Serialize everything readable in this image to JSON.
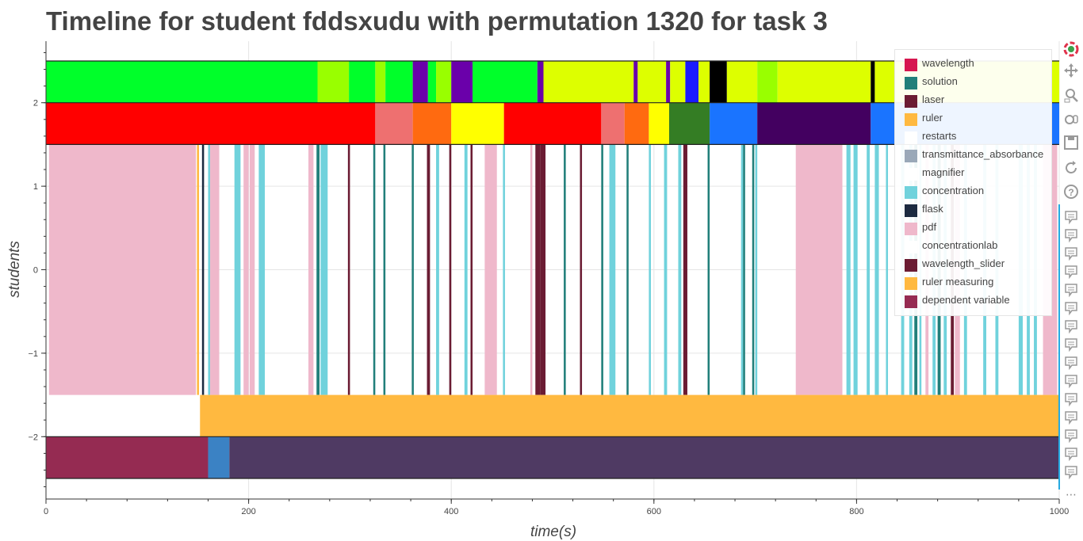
{
  "title": "Timeline for student fddsxudu with permutation 1320 for task 3",
  "chart_data": {
    "type": "timeline",
    "title": "Timeline for student fddsxudu with permutation 1320 for task 3",
    "xlabel": "time(s)",
    "ylabel": "students",
    "xlim": [
      0,
      1000
    ],
    "ylim": [
      -2.7,
      2.7
    ],
    "x_ticks": [
      0,
      200,
      400,
      600,
      800,
      1000
    ],
    "y_ticks": [
      2,
      1,
      0,
      -1,
      -2
    ],
    "y_tick_labels": [
      "2",
      "1",
      "0",
      "−1",
      "−2"
    ],
    "grid": true,
    "legend_position": "top-right",
    "legend": [
      {
        "label": "wavelength",
        "color": "#d6164f"
      },
      {
        "label": "solution",
        "color": "#217f7a"
      },
      {
        "label": "laser",
        "color": "#6b1c33"
      },
      {
        "label": "ruler",
        "color": "#ffb940"
      },
      {
        "label": "restarts",
        "color": "#ffffff"
      },
      {
        "label": "transmittance_absorbance",
        "color": "#9aa8b8"
      },
      {
        "label": "magnifier",
        "color": "#ffffff"
      },
      {
        "label": "concentration",
        "color": "#70d2dc"
      },
      {
        "label": "flask",
        "color": "#1b2a40"
      },
      {
        "label": "pdf",
        "color": "#efb8cb"
      },
      {
        "label": "concentrationlab",
        "color": "#ffffff"
      },
      {
        "label": "wavelength_slider",
        "color": "#6b1c33"
      },
      {
        "label": "ruler measuring",
        "color": "#ffb940"
      },
      {
        "label": "dependent variable",
        "color": "#952b52"
      }
    ],
    "rows": [
      {
        "y_from": 2.0,
        "y_to": 2.5,
        "segments": [
          {
            "x0": 0,
            "x1": 268,
            "color": "#00ff2a"
          },
          {
            "x0": 268,
            "x1": 299,
            "color": "#99ff00"
          },
          {
            "x0": 299,
            "x1": 325,
            "color": "#00ff2a"
          },
          {
            "x0": 325,
            "x1": 335,
            "color": "#99ff00"
          },
          {
            "x0": 335,
            "x1": 362,
            "color": "#00ff2a"
          },
          {
            "x0": 362,
            "x1": 377,
            "color": "#6a00aa"
          },
          {
            "x0": 377,
            "x1": 385,
            "color": "#00ff2a"
          },
          {
            "x0": 385,
            "x1": 400,
            "color": "#99ff00"
          },
          {
            "x0": 400,
            "x1": 421,
            "color": "#6a00aa"
          },
          {
            "x0": 421,
            "x1": 485,
            "color": "#00ff2a"
          },
          {
            "x0": 485,
            "x1": 491,
            "color": "#6a00aa"
          },
          {
            "x0": 491,
            "x1": 580,
            "color": "#ddff00"
          },
          {
            "x0": 580,
            "x1": 584,
            "color": "#6a00aa"
          },
          {
            "x0": 584,
            "x1": 612,
            "color": "#ddff00"
          },
          {
            "x0": 612,
            "x1": 616,
            "color": "#6a00aa"
          },
          {
            "x0": 616,
            "x1": 631,
            "color": "#ddff00"
          },
          {
            "x0": 631,
            "x1": 644,
            "color": "#1a1aff"
          },
          {
            "x0": 644,
            "x1": 655,
            "color": "#ddff00"
          },
          {
            "x0": 655,
            "x1": 672,
            "color": "#000000"
          },
          {
            "x0": 672,
            "x1": 702,
            "color": "#ddff00"
          },
          {
            "x0": 702,
            "x1": 722,
            "color": "#99ff00"
          },
          {
            "x0": 722,
            "x1": 814,
            "color": "#ddff00"
          },
          {
            "x0": 814,
            "x1": 818,
            "color": "#000000"
          },
          {
            "x0": 818,
            "x1": 1000,
            "color": "#ddff00"
          }
        ]
      },
      {
        "y_from": 1.5,
        "y_to": 2.0,
        "segments": [
          {
            "x0": 0,
            "x1": 325,
            "color": "#ff0000"
          },
          {
            "x0": 325,
            "x1": 362,
            "color": "#ee7070"
          },
          {
            "x0": 362,
            "x1": 400,
            "color": "#ff6a10"
          },
          {
            "x0": 400,
            "x1": 452,
            "color": "#ffff00"
          },
          {
            "x0": 452,
            "x1": 548,
            "color": "#ff0000"
          },
          {
            "x0": 548,
            "x1": 571,
            "color": "#ee7070"
          },
          {
            "x0": 571,
            "x1": 595,
            "color": "#ff6a10"
          },
          {
            "x0": 595,
            "x1": 615,
            "color": "#ffff00"
          },
          {
            "x0": 615,
            "x1": 655,
            "color": "#347d24"
          },
          {
            "x0": 655,
            "x1": 702,
            "color": "#1a74ff"
          },
          {
            "x0": 702,
            "x1": 814,
            "color": "#430060"
          },
          {
            "x0": 814,
            "x1": 1000,
            "color": "#1a74ff"
          }
        ]
      },
      {
        "y_from": -1.5,
        "y_to": 1.5,
        "segments": [
          {
            "x0": 3,
            "x1": 148,
            "color": "#efb8cb"
          },
          {
            "x0": 149,
            "x1": 151,
            "color": "#ffb940"
          },
          {
            "x0": 154,
            "x1": 156,
            "color": "#1b2a40"
          },
          {
            "x0": 160,
            "x1": 162,
            "color": "#70d2dc"
          },
          {
            "x0": 162,
            "x1": 171,
            "color": "#efb8cb"
          },
          {
            "x0": 186,
            "x1": 192,
            "color": "#70d2dc"
          },
          {
            "x0": 195,
            "x1": 200,
            "color": "#efb8cb"
          },
          {
            "x0": 201,
            "x1": 206,
            "color": "#efb8cb"
          },
          {
            "x0": 210,
            "x1": 216,
            "color": "#70d2dc"
          },
          {
            "x0": 259,
            "x1": 264,
            "color": "#efb8cb"
          },
          {
            "x0": 267,
            "x1": 270,
            "color": "#217f7a"
          },
          {
            "x0": 271,
            "x1": 278,
            "color": "#70d2dc"
          },
          {
            "x0": 298,
            "x1": 300,
            "color": "#6b1c33"
          },
          {
            "x0": 323,
            "x1": 325,
            "color": "#217f7a"
          },
          {
            "x0": 333,
            "x1": 335,
            "color": "#217f7a"
          },
          {
            "x0": 361,
            "x1": 363,
            "color": "#217f7a"
          },
          {
            "x0": 376,
            "x1": 379,
            "color": "#6b1c33"
          },
          {
            "x0": 385,
            "x1": 388,
            "color": "#70d2dc"
          },
          {
            "x0": 398,
            "x1": 400,
            "color": "#6b1c33"
          },
          {
            "x0": 413,
            "x1": 416,
            "color": "#70d2dc"
          },
          {
            "x0": 419,
            "x1": 421,
            "color": "#6b1c33"
          },
          {
            "x0": 433,
            "x1": 445,
            "color": "#efb8cb"
          },
          {
            "x0": 451,
            "x1": 453,
            "color": "#70d2dc"
          },
          {
            "x0": 478,
            "x1": 480,
            "color": "#efb8cb"
          },
          {
            "x0": 483,
            "x1": 488,
            "color": "#6b1c33"
          },
          {
            "x0": 488,
            "x1": 493,
            "color": "#6b1c33"
          },
          {
            "x0": 511,
            "x1": 513,
            "color": "#217f7a"
          },
          {
            "x0": 527,
            "x1": 529,
            "color": "#6b1c33"
          },
          {
            "x0": 548,
            "x1": 550,
            "color": "#217f7a"
          },
          {
            "x0": 556,
            "x1": 562,
            "color": "#70d2dc"
          },
          {
            "x0": 573,
            "x1": 575,
            "color": "#217f7a"
          },
          {
            "x0": 595,
            "x1": 597,
            "color": "#70d2dc"
          },
          {
            "x0": 610,
            "x1": 613,
            "color": "#70d2dc"
          },
          {
            "x0": 624,
            "x1": 627,
            "color": "#70d2dc"
          },
          {
            "x0": 629,
            "x1": 633,
            "color": "#6b1c33"
          },
          {
            "x0": 653,
            "x1": 655,
            "color": "#217f7a"
          },
          {
            "x0": 686,
            "x1": 688,
            "color": "#70d2dc"
          },
          {
            "x0": 688,
            "x1": 690,
            "color": "#217f7a"
          },
          {
            "x0": 697,
            "x1": 699,
            "color": "#217f7a"
          },
          {
            "x0": 700,
            "x1": 702,
            "color": "#70d2dc"
          },
          {
            "x0": 740,
            "x1": 786,
            "color": "#efb8cb"
          },
          {
            "x0": 790,
            "x1": 794,
            "color": "#70d2dc"
          },
          {
            "x0": 797,
            "x1": 801,
            "color": "#70d2dc"
          },
          {
            "x0": 810,
            "x1": 813,
            "color": "#70d2dc"
          },
          {
            "x0": 818,
            "x1": 822,
            "color": "#70d2dc"
          },
          {
            "x0": 829,
            "x1": 831,
            "color": "#70d2dc"
          },
          {
            "x0": 844,
            "x1": 847,
            "color": "#70d2dc"
          },
          {
            "x0": 852,
            "x1": 855,
            "color": "#70d2dc"
          },
          {
            "x0": 857,
            "x1": 860,
            "color": "#217f7a"
          },
          {
            "x0": 862,
            "x1": 864,
            "color": "#70d2dc"
          },
          {
            "x0": 868,
            "x1": 871,
            "color": "#efb8cb"
          },
          {
            "x0": 875,
            "x1": 878,
            "color": "#70d2dc"
          },
          {
            "x0": 880,
            "x1": 883,
            "color": "#217f7a"
          },
          {
            "x0": 886,
            "x1": 889,
            "color": "#70d2dc"
          },
          {
            "x0": 893,
            "x1": 896,
            "color": "#6b1c33"
          },
          {
            "x0": 897,
            "x1": 902,
            "color": "#efb8cb"
          },
          {
            "x0": 906,
            "x1": 909,
            "color": "#70d2dc"
          },
          {
            "x0": 925,
            "x1": 928,
            "color": "#70d2dc"
          },
          {
            "x0": 937,
            "x1": 940,
            "color": "#70d2dc"
          },
          {
            "x0": 960,
            "x1": 964,
            "color": "#70d2dc"
          },
          {
            "x0": 968,
            "x1": 971,
            "color": "#70d2dc"
          },
          {
            "x0": 975,
            "x1": 978,
            "color": "#70d2dc"
          },
          {
            "x0": 984,
            "x1": 998,
            "color": "#efb8cb"
          }
        ]
      },
      {
        "y_from": -2.0,
        "y_to": -1.5,
        "segments": [
          {
            "x0": 152,
            "x1": 1000,
            "color": "#ffb940"
          }
        ]
      },
      {
        "y_from": -2.5,
        "y_to": -2.0,
        "segments": [
          {
            "x0": 0,
            "x1": 160,
            "color": "#952b52"
          },
          {
            "x0": 160,
            "x1": 181,
            "color": "#3b82c4"
          },
          {
            "x0": 181,
            "x1": 1000,
            "color": "#4f3a63"
          }
        ]
      }
    ]
  },
  "toolbar": {
    "tools": [
      "bokeh-logo-icon",
      "pan-icon",
      "box-zoom-icon",
      "wheel-zoom-icon",
      "save-icon",
      "reset-icon",
      "help-icon"
    ],
    "hover_tool_count": 15,
    "more_label": "⋯"
  }
}
